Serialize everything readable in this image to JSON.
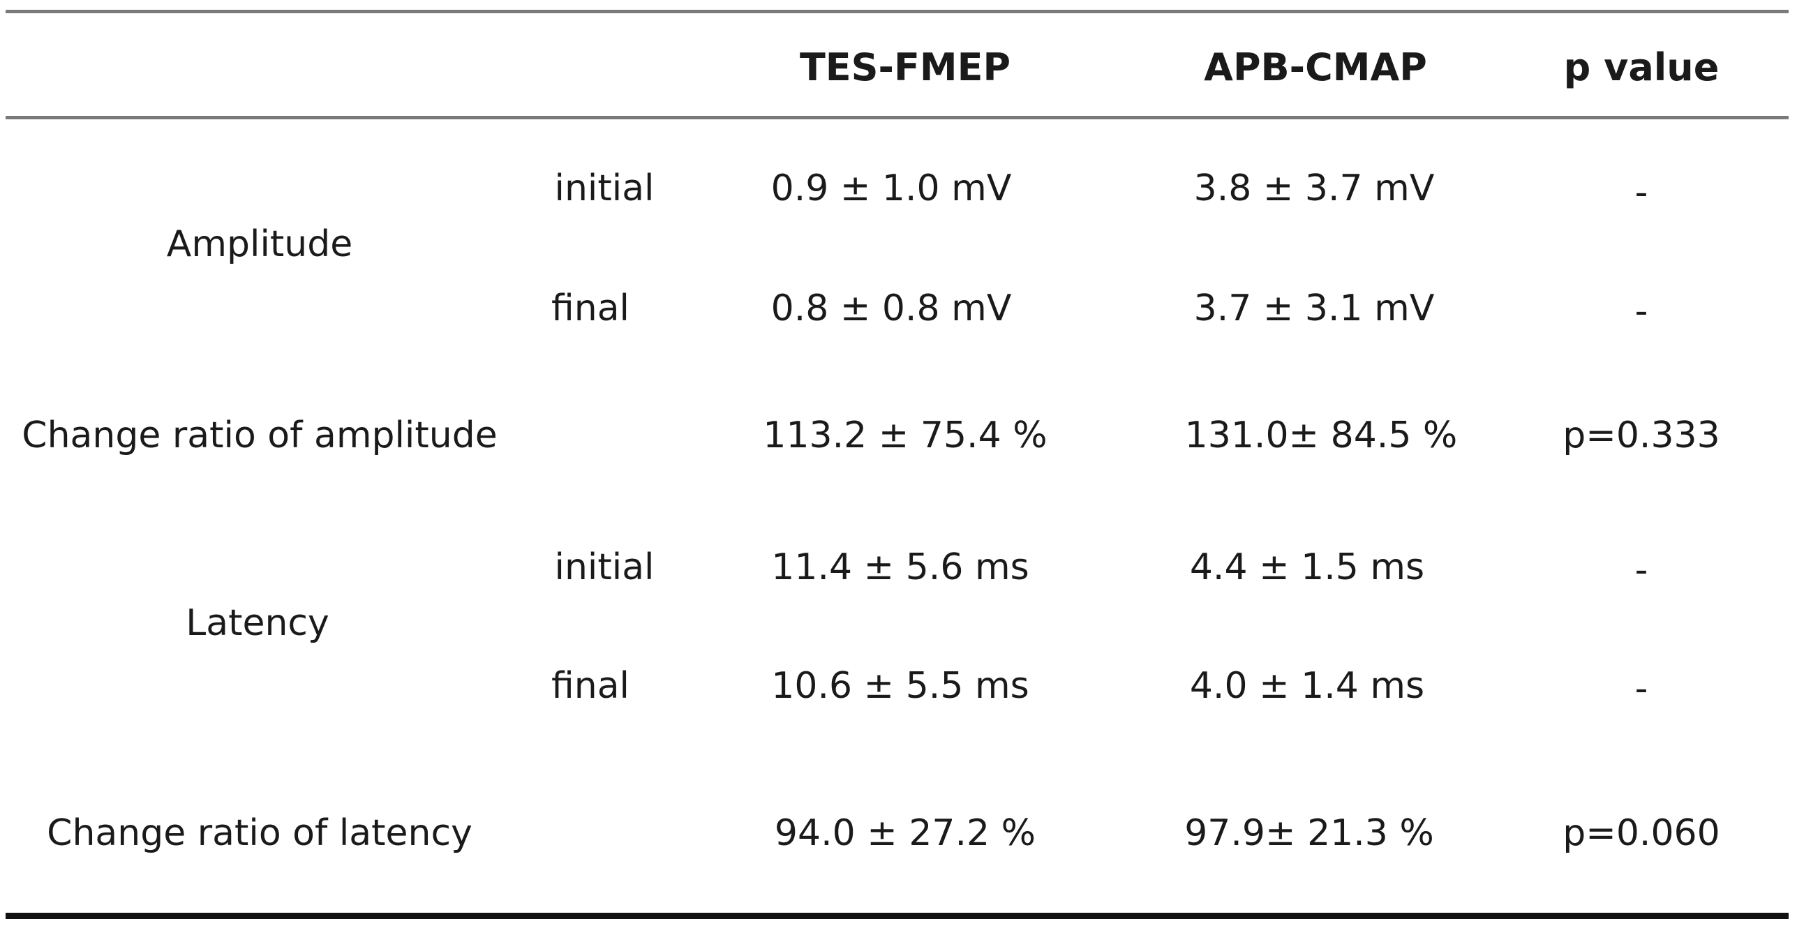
{
  "table": {
    "headers": {
      "col1": "TES-FMEP",
      "col2": "APB-CMAP",
      "col3": "p value"
    },
    "rows": [
      {
        "group": "Amplitude",
        "sub": "initial",
        "tes": "0.9 ± 1.0 mV",
        "apb": "3.8 ± 3.7 mV",
        "p": "-"
      },
      {
        "group": "",
        "sub": "final",
        "tes": "0.8 ± 0.8 mV",
        "apb": "3.7 ± 3.1 mV",
        "p": "-"
      },
      {
        "group": "Change ratio of amplitude",
        "sub": "",
        "tes": "113.2 ±  75.4 %",
        "apb": "131.0±  84.5 %",
        "p": "p=0.333"
      },
      {
        "group": "Latency",
        "sub": "initial",
        "tes": "11.4 ± 5.6 ms",
        "apb": "4.4 ± 1.5 ms",
        "p": "-"
      },
      {
        "group": "",
        "sub": "final",
        "tes": "10.6 ± 5.5 ms",
        "apb": "4.0 ± 1.4 ms",
        "p": "-"
      },
      {
        "group": "Change ratio of latency",
        "sub": "",
        "tes": "94.0 ±  27.2 %",
        "apb": "97.9±  21.3 %",
        "p": "p=0.060"
      }
    ]
  }
}
